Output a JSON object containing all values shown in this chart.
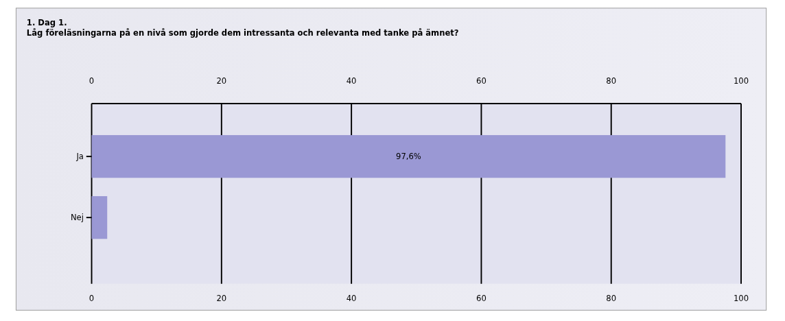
{
  "chart_data": {
    "type": "bar",
    "orientation": "horizontal",
    "title": "1. Dag 1.",
    "subtitle": "Låg föreläsningarna på en nivå som gjorde dem intressanta och relevanta med tanke på ämnet?",
    "categories": [
      "Ja",
      "Nej"
    ],
    "values": [
      97.6,
      2.4
    ],
    "color": "#9a98d4",
    "value_labels": [
      "97,6%",
      null
    ],
    "xlim": [
      0,
      100
    ],
    "x2lim": [
      0,
      100
    ],
    "xticks": [
      0,
      20,
      40,
      60,
      80,
      100
    ],
    "x2ticks": [
      0,
      20,
      40,
      60,
      80,
      100
    ],
    "grid": "x"
  }
}
